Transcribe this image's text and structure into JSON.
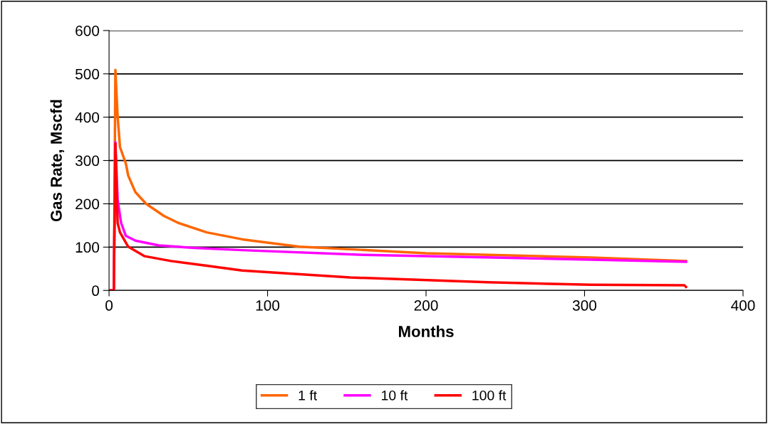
{
  "chart_data": {
    "type": "line",
    "xlabel": "Months",
    "ylabel": "Gas Rate, Mscfd",
    "xlim": [
      0,
      400
    ],
    "ylim": [
      0,
      600
    ],
    "xticks": [
      0,
      100,
      200,
      300,
      400
    ],
    "yticks": [
      0,
      100,
      200,
      300,
      400,
      500,
      600
    ],
    "grid": "y",
    "legend": "bottom",
    "marker": "none",
    "line_style": "solid",
    "series": [
      {
        "name": "1 ft",
        "color": "#ff6600",
        "x": [
          1,
          3,
          4,
          5.4,
          6.9,
          10.6,
          12.1,
          16.6,
          23.4,
          34.6,
          43.6,
          61.6,
          84,
          120,
          200,
          304,
          364
        ],
        "values": [
          0,
          0,
          509,
          402,
          331,
          293,
          265,
          227,
          200,
          172,
          156,
          134,
          118,
          101,
          86,
          76,
          68
        ]
      },
      {
        "name": "10 ft",
        "color": "#ff00ff",
        "x": [
          1,
          3,
          4,
          5.4,
          7.6,
          10.6,
          16.6,
          31.5,
          54,
          84,
          161,
          254,
          364
        ],
        "values": [
          0,
          0,
          342,
          210,
          156,
          126,
          115,
          104,
          98,
          93,
          82,
          75,
          66
        ]
      },
      {
        "name": "100 ft",
        "color": "#ff0000",
        "x": [
          1,
          3,
          4,
          5.4,
          6.9,
          12.1,
          22.5,
          39,
          61.6,
          84,
          152,
          239,
          304,
          363,
          364
        ],
        "values": [
          0,
          0,
          339,
          156,
          134,
          101,
          79,
          68,
          57,
          46,
          30,
          19,
          13,
          12,
          8
        ]
      }
    ]
  }
}
